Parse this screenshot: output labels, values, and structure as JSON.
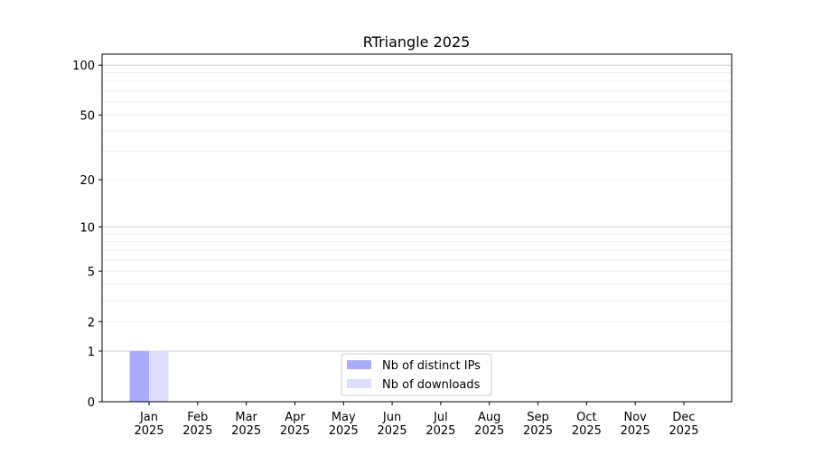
{
  "chart_data": {
    "type": "bar",
    "title": "RTriangle 2025",
    "xlabel": "",
    "ylabel": "",
    "y_scale": "log(1+y)",
    "ylim": [
      0,
      116
    ],
    "yticks": [
      0,
      1,
      2,
      5,
      10,
      20,
      50,
      100
    ],
    "grid": true,
    "legend_position": "lower center",
    "categories": [
      "Jan\n2025",
      "Feb\n2025",
      "Mar\n2025",
      "Apr\n2025",
      "May\n2025",
      "Jun\n2025",
      "Jul\n2025",
      "Aug\n2025",
      "Sep\n2025",
      "Oct\n2025",
      "Nov\n2025",
      "Dec\n2025"
    ],
    "series": [
      {
        "name": "Nb of distinct IPs",
        "color": "#aaaaff",
        "values": [
          1,
          0,
          0,
          0,
          0,
          0,
          0,
          0,
          0,
          0,
          0,
          0
        ]
      },
      {
        "name": "Nb of downloads",
        "color": "#ddddff",
        "values": [
          1,
          0,
          0,
          0,
          0,
          0,
          0,
          0,
          0,
          0,
          0,
          0
        ]
      }
    ]
  }
}
